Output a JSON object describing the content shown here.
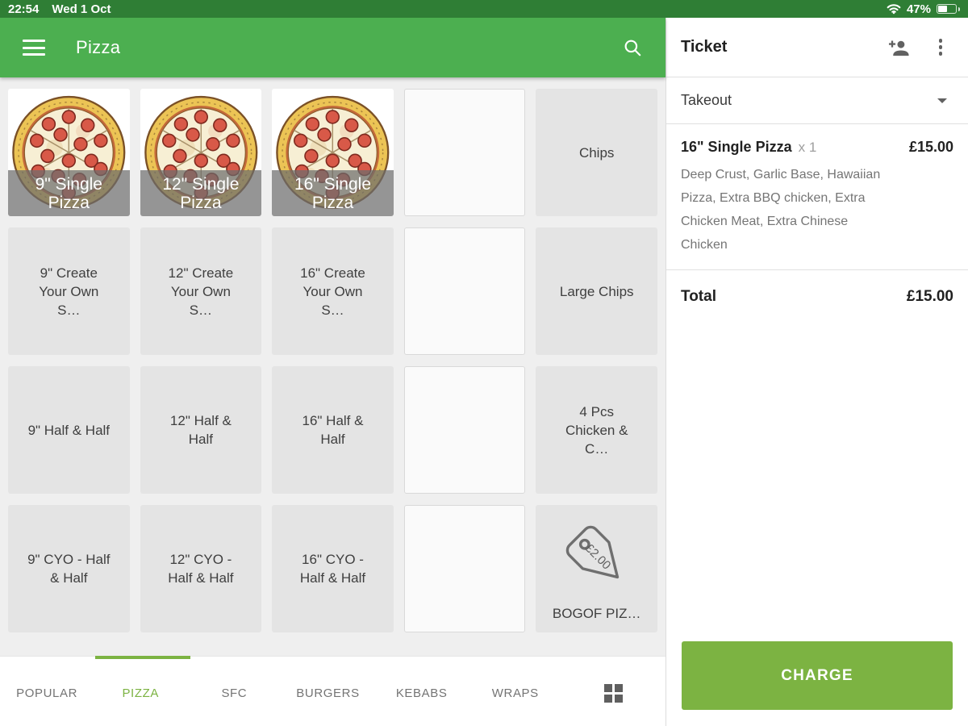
{
  "status_bar": {
    "time": "22:54",
    "date": "Wed 1 Oct",
    "battery_percent": "47%"
  },
  "app_bar": {
    "title": "Pizza"
  },
  "grid": {
    "tiles": [
      {
        "type": "image",
        "label": "9\" Single Pizza"
      },
      {
        "type": "image",
        "label": "12\" Single Pizza"
      },
      {
        "type": "image",
        "label": "16\" Single Pizza"
      },
      {
        "type": "empty"
      },
      {
        "type": "text",
        "label": "Chips"
      },
      {
        "type": "text",
        "label": "9\" Create Your Own S…"
      },
      {
        "type": "text",
        "label": "12\" Create Your Own S…"
      },
      {
        "type": "text",
        "label": "16\" Create Your Own S…"
      },
      {
        "type": "empty"
      },
      {
        "type": "text",
        "label": "Large Chips"
      },
      {
        "type": "text",
        "label": "9\" Half & Half"
      },
      {
        "type": "text",
        "label": "12\" Half & Half"
      },
      {
        "type": "text",
        "label": "16\" Half & Half"
      },
      {
        "type": "empty"
      },
      {
        "type": "text",
        "label": "4 Pcs Chicken & C…"
      },
      {
        "type": "text",
        "label": "9\" CYO - Half & Half"
      },
      {
        "type": "text",
        "label": "12\" CYO - Half & Half"
      },
      {
        "type": "text",
        "label": "16\" CYO - Half & Half"
      },
      {
        "type": "empty"
      },
      {
        "type": "tag",
        "label": "BOGOF PIZ…",
        "tag_price": "£2.00"
      }
    ]
  },
  "tabs": {
    "items": [
      "POPULAR",
      "PIZZA",
      "SFC",
      "BURGERS",
      "KEBABS",
      "WRAPS"
    ],
    "active_index": 1
  },
  "ticket": {
    "title": "Ticket",
    "order_type": "Takeout",
    "item": {
      "name": "16\" Single Pizza",
      "qty": "x 1",
      "price": "£15.00",
      "description": "Deep Crust, Garlic Base, Hawaiian Pizza, Extra BBQ chicken, Extra Chicken Meat, Extra Chinese Chicken"
    },
    "total_label": "Total",
    "total_value": "£15.00",
    "charge_label": "CHARGE"
  },
  "colors": {
    "status_bar_green": "#2f7e35",
    "app_bar_green": "#4caf50",
    "accent_green": "#7cb342",
    "grid_background": "#efefef",
    "tile_gray": "#e4e4e4"
  }
}
